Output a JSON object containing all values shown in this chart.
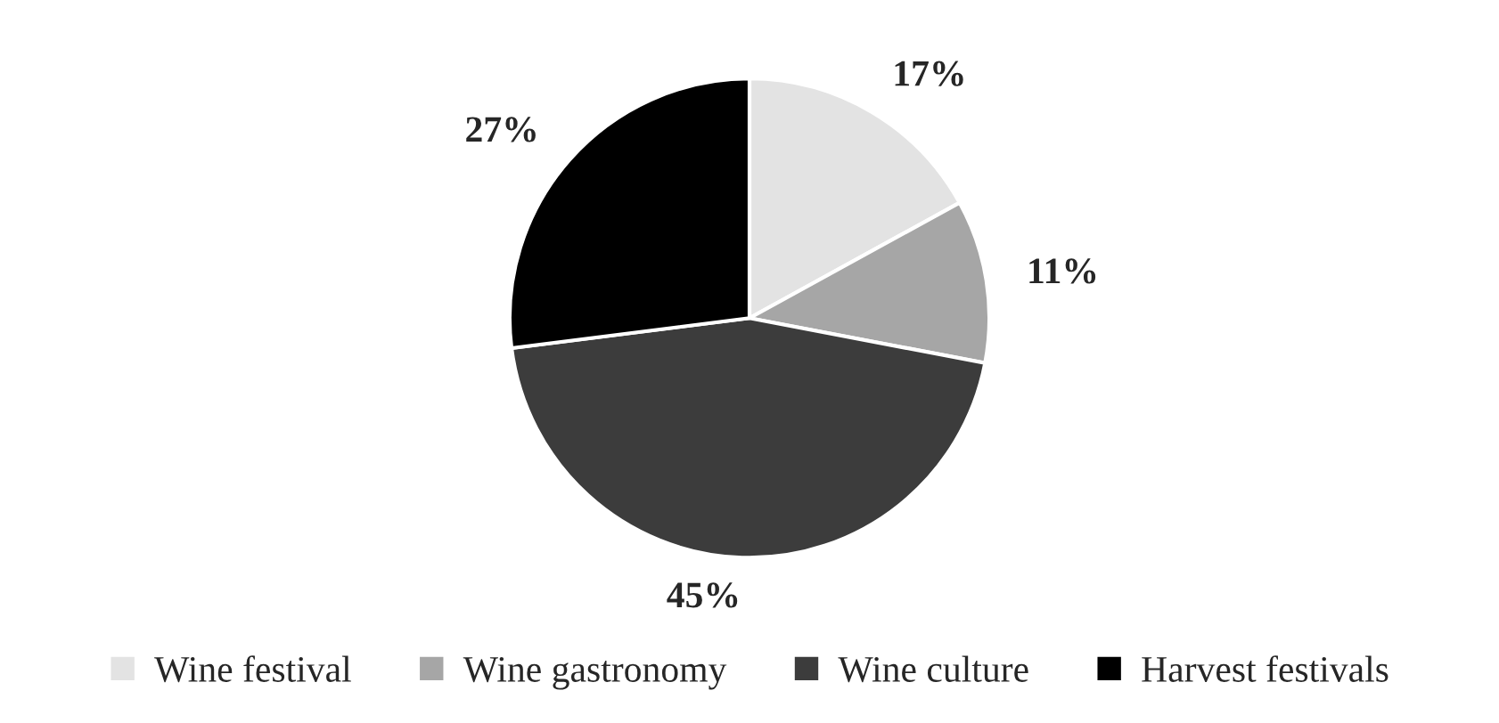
{
  "chart_data": {
    "type": "pie",
    "categories": [
      "Wine festival",
      "Wine gastronomy",
      "Wine culture",
      "Harvest festivals"
    ],
    "values": [
      17,
      11,
      45,
      27
    ],
    "colors": [
      "#e3e3e3",
      "#a6a6a6",
      "#3c3c3c",
      "#000000"
    ],
    "value_labels": [
      "17%",
      "11%",
      "45%",
      "27%"
    ],
    "legend": "bottom"
  }
}
